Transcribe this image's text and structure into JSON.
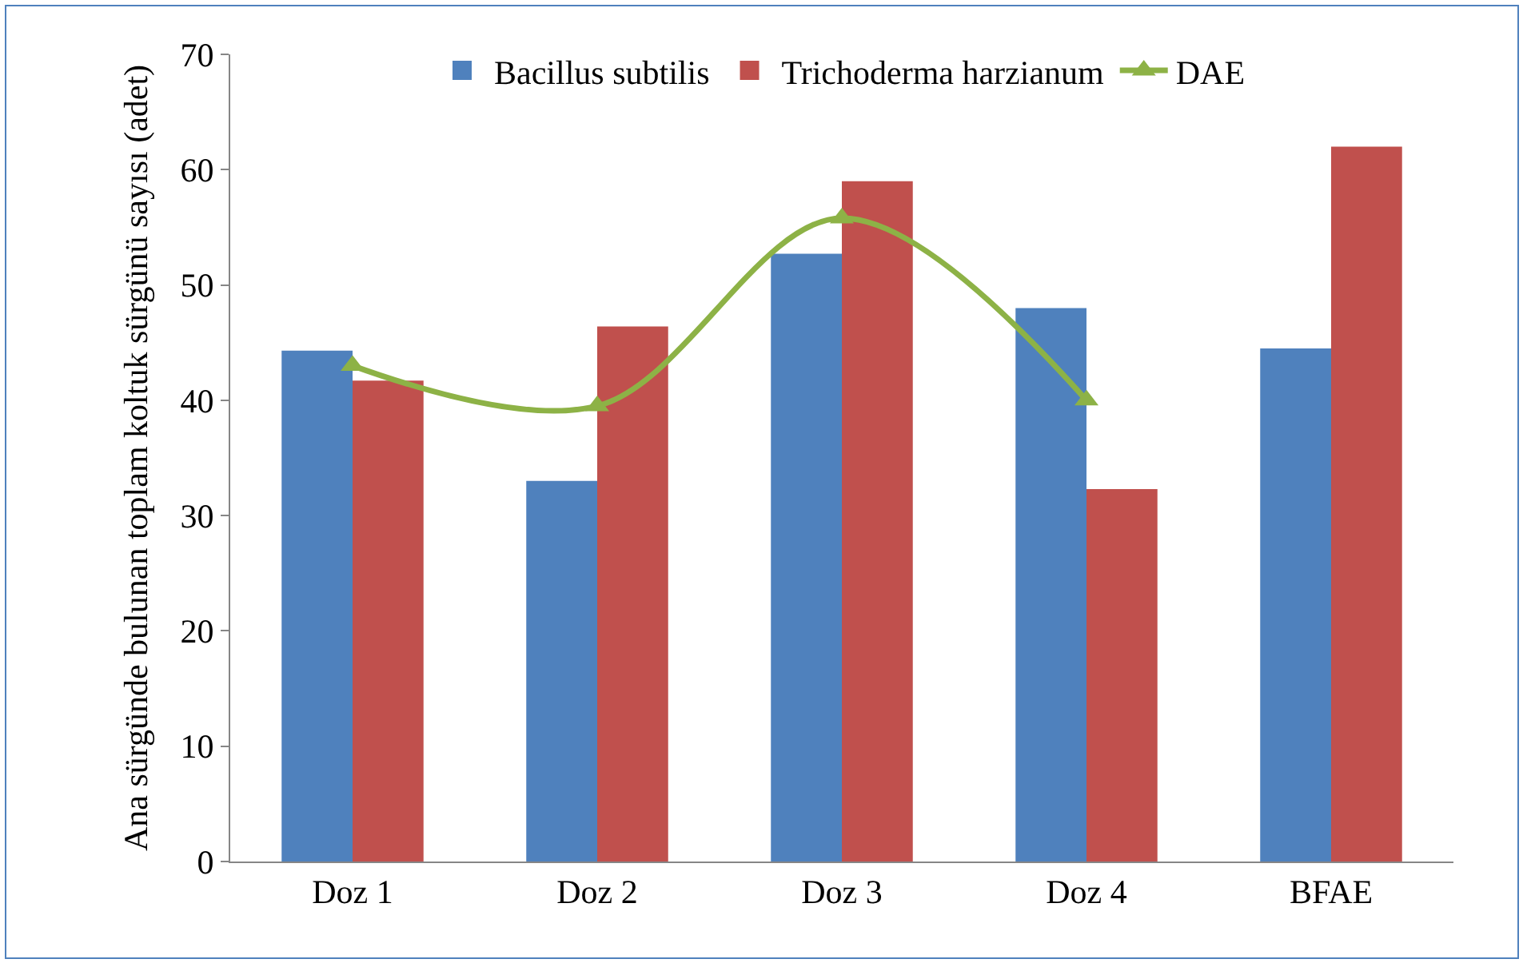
{
  "chart_data": {
    "type": "bar",
    "ylabel": "Ana sürgünde bulunan toplam koltuk sürgünü sayısı (adet)",
    "categories": [
      "Doz 1",
      "Doz 2",
      "Doz 3",
      "Doz 4",
      "BFAE"
    ],
    "series": [
      {
        "name": "Bacillus subtilis",
        "color": "#4f81bd",
        "values": [
          44.3,
          33,
          52.7,
          48,
          44.5
        ]
      },
      {
        "name": "Trichoderma harzianum",
        "color": "#c0504d",
        "values": [
          41.7,
          46.4,
          59,
          32.3,
          62
        ]
      },
      {
        "name": "DAE",
        "type": "line",
        "color": "#8db246",
        "values": [
          43,
          39.5,
          55.8,
          40,
          null
        ]
      }
    ],
    "ylim": [
      0,
      70
    ],
    "yticks": [
      0,
      10,
      20,
      30,
      40,
      50,
      60,
      70
    ],
    "grid": false,
    "legend": "top",
    "marker": "triangle"
  }
}
